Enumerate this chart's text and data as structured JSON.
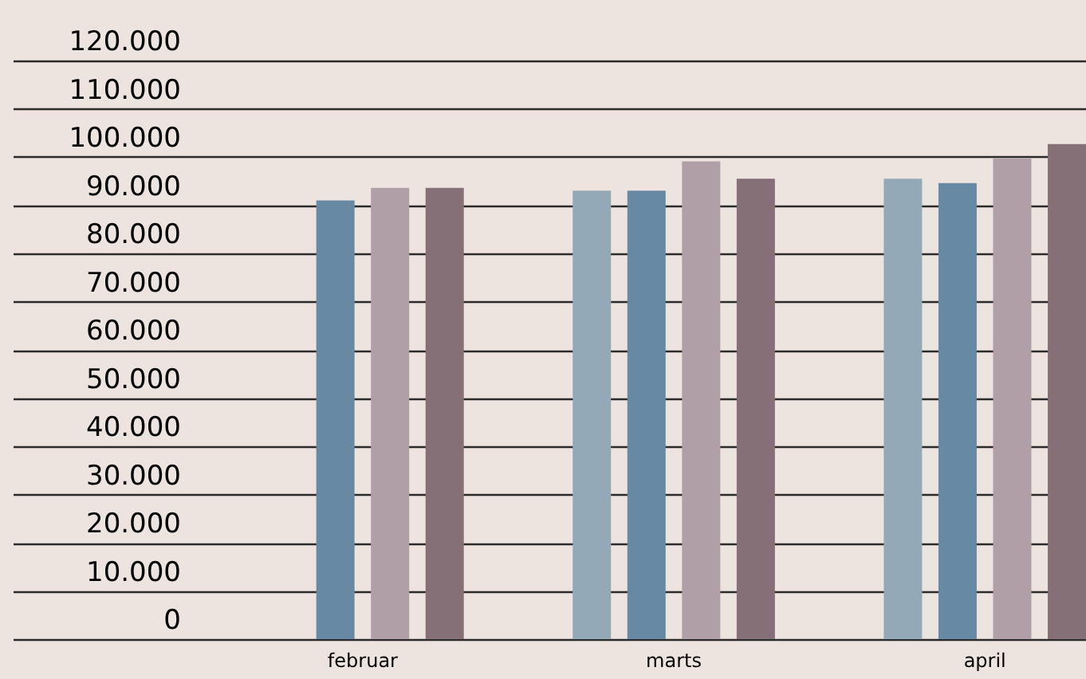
{
  "chart_data": {
    "type": "bar",
    "categories": [
      "februar",
      "marts",
      "april"
    ],
    "series": [
      {
        "color": "#93a9b7",
        "values": [
          null,
          93000,
          95500
        ]
      },
      {
        "color": "#6789a3",
        "values": [
          91000,
          93000,
          94600
        ]
      },
      {
        "color": "#b09fa6",
        "values": [
          93600,
          99100,
          99700
        ]
      },
      {
        "color": "#857078",
        "values": [
          93600,
          95500,
          102700
        ]
      }
    ],
    "ylim": [
      0,
      120000
    ],
    "yticks": [
      0,
      {
        "value": 10000,
        "label": "10.000"
      },
      {
        "value": 20000,
        "label": "20.000"
      },
      {
        "value": 30000,
        "label": "30.000"
      },
      {
        "value": 40000,
        "label": "40.000"
      },
      {
        "value": 50000,
        "label": "50.000"
      },
      {
        "value": 60000,
        "label": "60.000"
      },
      {
        "value": 70000,
        "label": "70.000"
      },
      {
        "value": 80000,
        "label": "80.000"
      },
      {
        "value": 90000,
        "label": "90.000"
      },
      {
        "value": 100000,
        "label": "100.000"
      },
      {
        "value": 110000,
        "label": "110.000"
      },
      {
        "value": 120000,
        "label": "120.000"
      }
    ],
    "grid": "y",
    "legend": false
  }
}
